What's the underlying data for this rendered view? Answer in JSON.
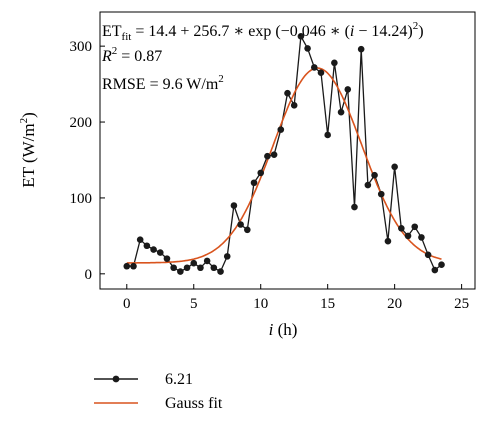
{
  "chart_data": {
    "type": "line",
    "xlabel_var": "i",
    "xlabel_unit": "(h)",
    "ylabel_main": "ET (W/m",
    "ylabel_sup": "2",
    "ylabel_close": ")",
    "xlim": [
      -2,
      26
    ],
    "ylim": [
      -20,
      345
    ],
    "x_ticks": [
      0,
      5,
      10,
      15,
      20,
      25
    ],
    "y_ticks": [
      0,
      100,
      200,
      300
    ],
    "annotation": {
      "eq_prefix": "ET",
      "eq_sub": "fit",
      "eq_mid": " = 14.4 + 256.7 ∗ exp (−0.046 ∗ (",
      "eq_var": "i",
      "eq_suffix": " − 14.24)",
      "eq_sup": "2",
      "eq_close": ")",
      "r2_var": "R",
      "r2_sup": "2",
      "r2_value": " = 0.87",
      "rmse_text": "RMSE = 9.6 W/m",
      "rmse_sup": "2"
    },
    "series": [
      {
        "name": "6.21",
        "color": "#1a1a1a",
        "marker": "circle",
        "x": [
          0,
          0.5,
          1,
          1.5,
          2,
          2.5,
          3,
          3.5,
          4,
          4.5,
          5,
          5.5,
          6,
          6.5,
          7,
          7.5,
          8,
          8.5,
          9,
          9.5,
          10,
          10.5,
          11,
          11.5,
          12,
          12.5,
          13,
          13.5,
          14,
          14.5,
          15,
          15.5,
          16,
          16.5,
          17,
          17.5,
          18,
          18.5,
          19,
          19.5,
          20,
          20.5,
          21,
          21.5,
          22,
          22.5,
          23,
          23.5
        ],
        "y": [
          10,
          10,
          45,
          37,
          32,
          28,
          20,
          8,
          3,
          8,
          14,
          8,
          17,
          8,
          3,
          23,
          90,
          65,
          58,
          120,
          133,
          155,
          157,
          190,
          238,
          222,
          313,
          297,
          272,
          265,
          183,
          278,
          213,
          243,
          88,
          296,
          117,
          130,
          105,
          43,
          141,
          60,
          50,
          62,
          48,
          25,
          5,
          12
        ]
      },
      {
        "name": "Gauss fit",
        "color": "#d9541e",
        "type": "gaussian",
        "a": 14.4,
        "b": 256.7,
        "c": 0.046,
        "mu": 14.24,
        "x_range": [
          0,
          23.5
        ]
      }
    ]
  }
}
